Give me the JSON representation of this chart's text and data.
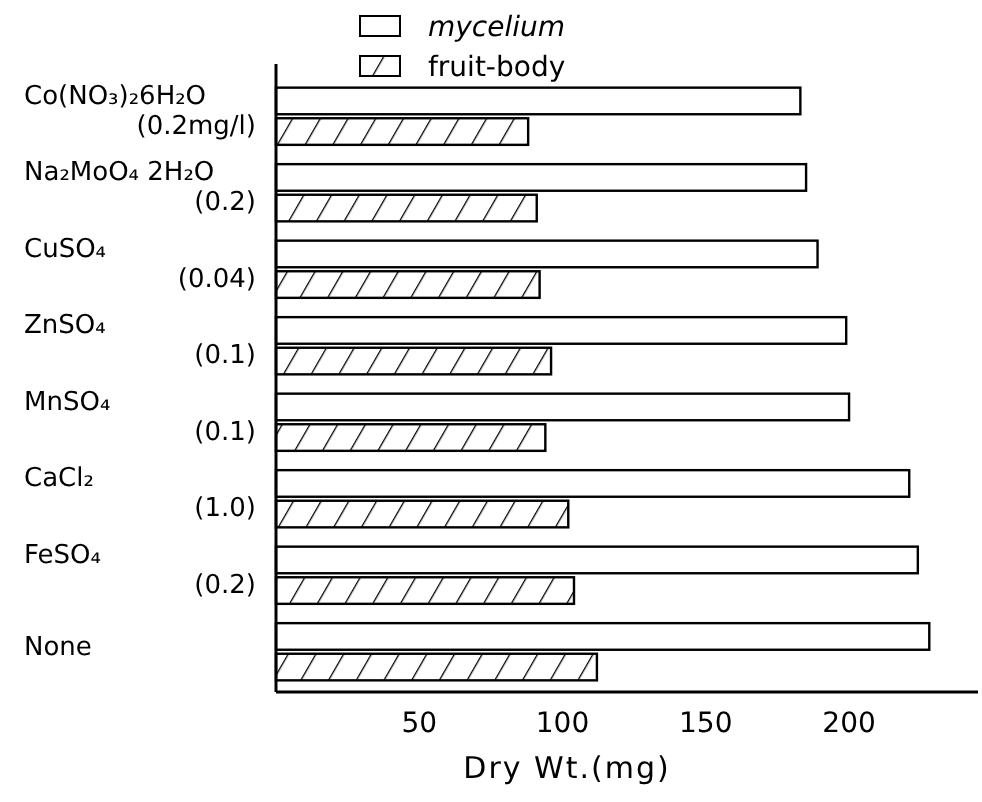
{
  "chart_data": {
    "type": "bar",
    "orientation": "horizontal",
    "xlabel": "Dry Wt.(mg)",
    "categories": [
      "Co(NO₃)₂6H₂O\n(0.2mg/l)",
      "Na₂MoO₄ 2H₂O\n(0.2)",
      "CuSO₄\n(0.04)",
      "ZnSO₄\n(0.1)",
      "MnSO₄\n(0.1)",
      "CaCl₂\n(1.0)",
      "FeSO₄\n(0.2)",
      "None"
    ],
    "series": [
      {
        "name": "mycelium",
        "color": "#ffffff",
        "values": [
          183,
          185,
          189,
          199,
          200,
          221,
          224,
          228
        ]
      },
      {
        "name": "fruit-body",
        "color": "#000000",
        "values": [
          88,
          91,
          92,
          96,
          94,
          102,
          104,
          112
        ]
      }
    ],
    "xlim": [
      0,
      245
    ],
    "xticks": [
      50,
      100,
      150,
      200
    ],
    "legend": "top",
    "grid": false
  }
}
